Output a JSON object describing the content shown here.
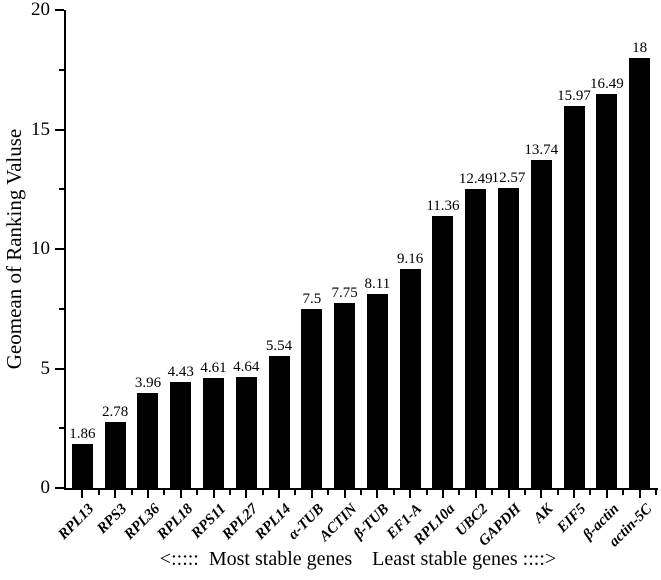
{
  "chart_data": {
    "type": "bar",
    "title": "",
    "ylabel": "Geomean of Ranking Valuse",
    "xlabel": "",
    "categories": [
      "RPL13",
      "RPS3",
      "RPL36",
      "RPL18",
      "RPS11",
      "RPL27",
      "RPL14",
      "α-TUB",
      "ACTIN",
      "β-TUB",
      "EF1-A",
      "RPL10a",
      "UBC2",
      "GAPDH",
      "AK",
      "EIF5",
      "β-actin",
      "actin-5C"
    ],
    "values": [
      1.86,
      2.78,
      3.96,
      4.43,
      4.61,
      4.64,
      5.54,
      7.5,
      7.75,
      8.11,
      9.16,
      11.36,
      12.49,
      12.57,
      13.74,
      15.97,
      16.49,
      18
    ],
    "ylim": [
      0,
      20
    ],
    "yticks": [
      0,
      5,
      10,
      15,
      20
    ],
    "y_minor_ticks": [
      2.5,
      7.5,
      12.5,
      17.5
    ],
    "annotation": "<:::::  Most stable genes    Least stable genes ::::>",
    "bar_color": "#000000",
    "grid": false,
    "legend": null
  }
}
